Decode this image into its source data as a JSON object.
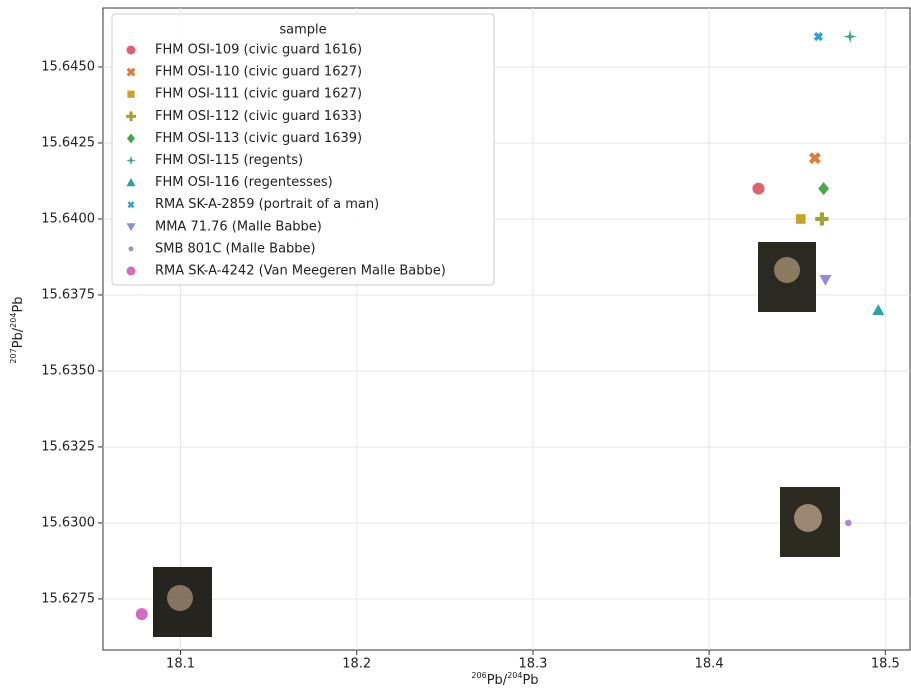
{
  "chart_data": {
    "type": "scatter",
    "x_label": "206Pb/204Pb",
    "y_label": "207Pb/204Pb",
    "legend_title": "sample",
    "legend_position": "upper left",
    "grid": true,
    "xlim": [
      18.056,
      18.514
    ],
    "ylim": [
      15.62582,
      15.64694
    ],
    "xticks": [
      18.1,
      18.2,
      18.3,
      18.4,
      18.5
    ],
    "yticks": [
      {
        "value": 15.6275,
        "label": "15.6275"
      },
      {
        "value": 15.63,
        "label": "15.6300"
      },
      {
        "value": 15.6325,
        "label": "15.6325"
      },
      {
        "value": 15.635,
        "label": "15.6350"
      },
      {
        "value": 15.6375,
        "label": "15.6375"
      },
      {
        "value": 15.64,
        "label": "15.6400"
      },
      {
        "value": 15.6425,
        "label": "15.6425"
      },
      {
        "value": 15.645,
        "label": "15.6450"
      }
    ],
    "series": [
      {
        "name": "FHM OSI-109 (civic guard 1616)",
        "color": "#e0606e",
        "marker": "circle",
        "x": [
          18.428
        ],
        "values": [
          15.641
        ]
      },
      {
        "name": "FHM OSI-110 (civic guard 1627)",
        "color": "#e07b39",
        "marker": "x",
        "x": [
          18.46
        ],
        "values": [
          15.642
        ]
      },
      {
        "name": "FHM OSI-111 (civic guard 1627)",
        "color": "#c9a227",
        "marker": "square",
        "x": [
          18.452
        ],
        "values": [
          15.64
        ]
      },
      {
        "name": "FHM OSI-112 (civic guard 1633)",
        "color": "#a3a335",
        "marker": "plus",
        "x": [
          18.464
        ],
        "values": [
          15.64
        ]
      },
      {
        "name": "FHM OSI-113 (civic guard 1639)",
        "color": "#4aa64a",
        "marker": "diamond",
        "x": [
          18.465
        ],
        "values": [
          15.641
        ]
      },
      {
        "name": "FHM OSI-115 (regents)",
        "color": "#3aa57f",
        "marker": "star",
        "x": [
          18.48
        ],
        "values": [
          15.646
        ]
      },
      {
        "name": "FHM OSI-116 (regentesses)",
        "color": "#2aa3a3",
        "marker": "triangle",
        "x": [
          18.496
        ],
        "values": [
          15.637
        ]
      },
      {
        "name": "RMA SK-A-2859 (portrait of a man)",
        "color": "#2f9fd4",
        "marker": "x-small",
        "x": [
          18.462
        ],
        "values": [
          15.646
        ]
      },
      {
        "name": "MMA 71.76 (Malle Babbe)",
        "color": "#8a8fdb",
        "marker": "triangle-down",
        "x": [
          18.466
        ],
        "values": [
          15.638
        ]
      },
      {
        "name": "SMB 801C (Malle Babbe)",
        "color": "#a98ad8",
        "marker": "dot",
        "x": [
          18.479
        ],
        "values": [
          15.63
        ]
      },
      {
        "name": "RMA SK-A-4242 (Van Meegeren Malle Babbe)",
        "color": "#d46bc0",
        "marker": "circle",
        "x": [
          18.078
        ],
        "values": [
          15.627
        ]
      }
    ]
  }
}
